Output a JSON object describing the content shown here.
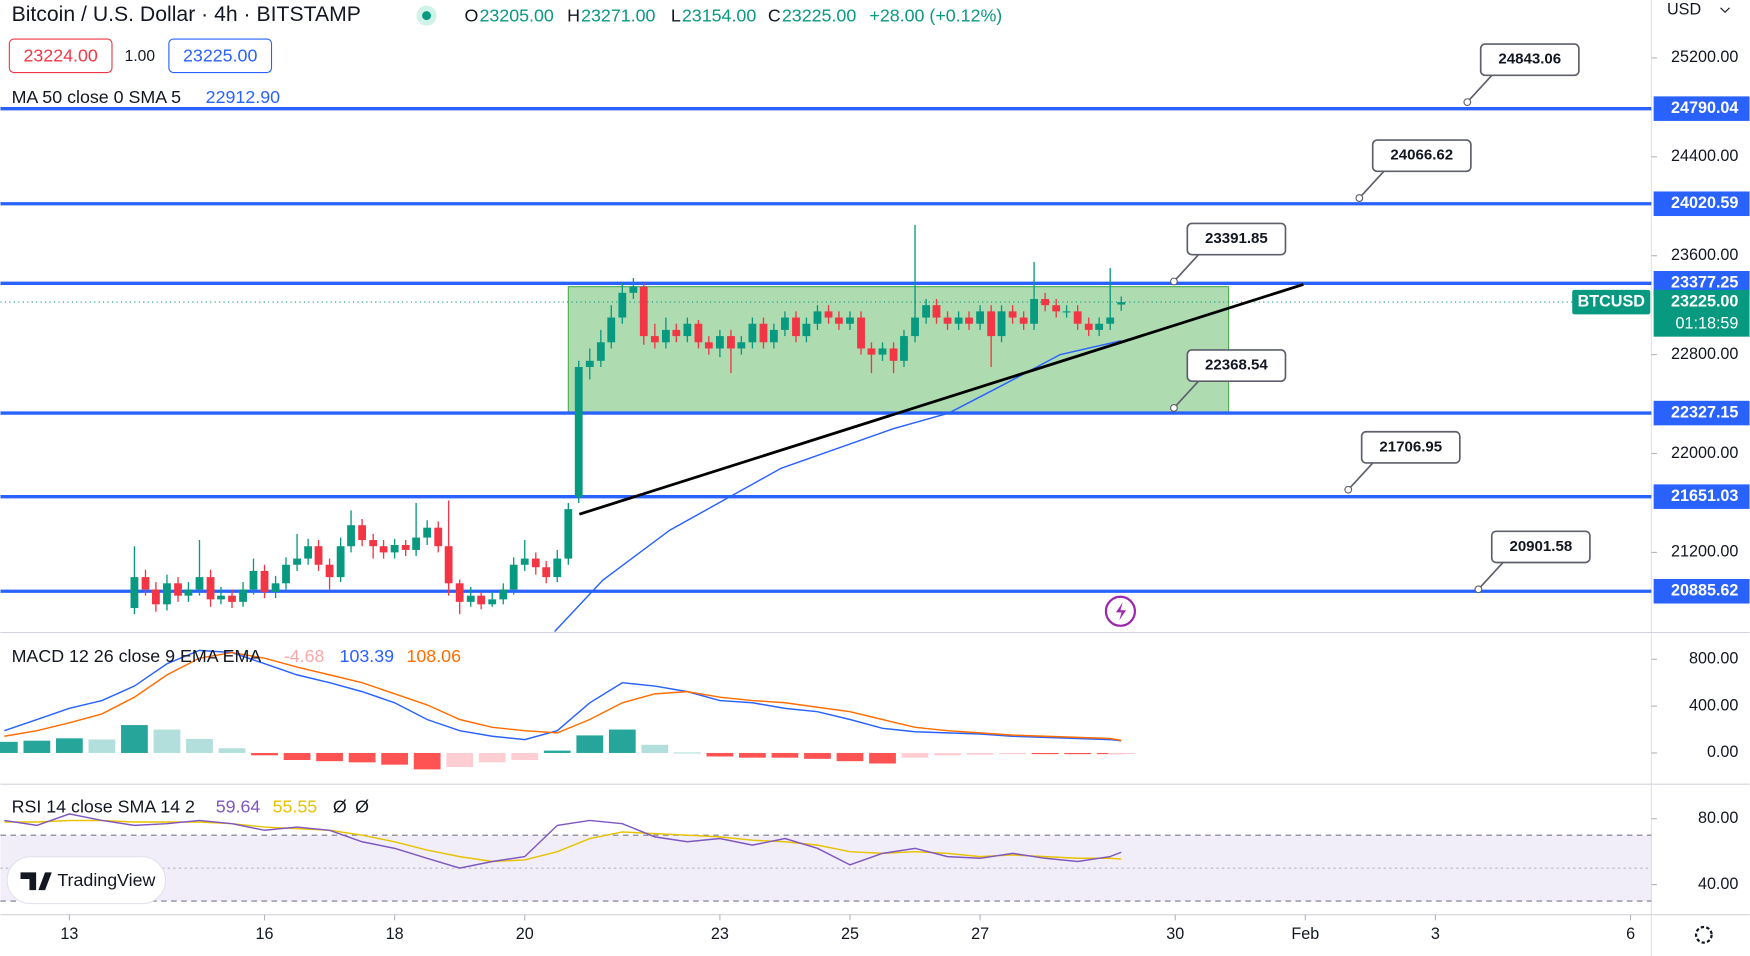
{
  "header": {
    "title": "Bitcoin / U.S. Dollar · 4h · BITSTAMP",
    "ohlc": [
      {
        "prefix": "O",
        "value": 23205,
        "label": "23205.00"
      },
      {
        "prefix": "H",
        "value": 23271,
        "label": "23271.00"
      },
      {
        "prefix": "L",
        "value": 23154,
        "label": "23154.00"
      },
      {
        "prefix": "C",
        "value": 23225,
        "label": "23225.00"
      }
    ],
    "change": "+28.00 (+0.12%)",
    "bid": {
      "value": 23224,
      "label": "23224.00"
    },
    "spread": {
      "value": 1,
      "label": "1.00"
    },
    "ask": {
      "value": 23225,
      "label": "23225.00"
    },
    "currency": "USD",
    "brand": "TradingView"
  },
  "chart_data": [
    {
      "type": "candlestick",
      "x": [
        14,
        14.17,
        14.33,
        14.5,
        14.67,
        14.83,
        15,
        15.17,
        15.33,
        15.5,
        15.67,
        15.83,
        16,
        16.17,
        16.33,
        16.5,
        16.67,
        16.83,
        17,
        17.17,
        17.33,
        17.5,
        17.67,
        17.83,
        18,
        18.17,
        18.33,
        18.5,
        18.67,
        18.83,
        19,
        19.17,
        19.33,
        19.5,
        19.67,
        19.83,
        20,
        20.17,
        20.33,
        20.5,
        20.67,
        20.83,
        21,
        21.17,
        21.33,
        21.5,
        21.67,
        21.83,
        22,
        22.17,
        22.33,
        22.5,
        22.67,
        22.83,
        23,
        23.17,
        23.33,
        23.5,
        23.67,
        23.83,
        24,
        24.17,
        24.33,
        24.5,
        24.67,
        24.83,
        25,
        25.17,
        25.33,
        25.5,
        25.67,
        25.83,
        26,
        26.17,
        26.33,
        26.5,
        26.67,
        26.83,
        27,
        27.17,
        27.33,
        27.5,
        27.67,
        27.83,
        28,
        28.17,
        28.33,
        28.5,
        28.67,
        28.83,
        29,
        29.17
      ],
      "open": [
        20750,
        21000,
        20900,
        20780,
        20950,
        20850,
        20900,
        21000,
        20820,
        20850,
        20800,
        20900,
        21050,
        20880,
        20950,
        21100,
        21150,
        21250,
        21100,
        21000,
        21250,
        21420,
        21300,
        21250,
        21200,
        21260,
        21220,
        21320,
        21400,
        21250,
        20950,
        20800,
        20850,
        20780,
        20820,
        20900,
        21100,
        21150,
        21080,
        21000,
        21150,
        21650,
        22700,
        22750,
        22900,
        23100,
        23300,
        23350,
        22950,
        22900,
        23000,
        22950,
        23050,
        22900,
        22850,
        22950,
        22850,
        22900,
        23050,
        22900,
        23000,
        23100,
        22950,
        23050,
        23150,
        23100,
        23050,
        23100,
        22850,
        22800,
        22850,
        22750,
        22950,
        23100,
        23200,
        23100,
        23050,
        23100,
        23050,
        23150,
        22950,
        23150,
        23100,
        23050,
        23250,
        23200,
        23150,
        23150,
        23050,
        23000,
        23050,
        23205
      ],
      "high": [
        21250,
        21060,
        20960,
        21020,
        21000,
        20960,
        21300,
        21060,
        20920,
        20900,
        20960,
        21150,
        21100,
        21010,
        21160,
        21350,
        21310,
        21300,
        21150,
        21320,
        21540,
        21470,
        21350,
        21300,
        21310,
        21300,
        21600,
        21460,
        21450,
        21620,
        20980,
        20920,
        20880,
        20880,
        20950,
        21160,
        21300,
        21200,
        21130,
        21220,
        21600,
        22750,
        22850,
        23000,
        23200,
        23380,
        23420,
        23380,
        23050,
        23100,
        23050,
        23100,
        23080,
        22950,
        23000,
        23000,
        22950,
        23100,
        23100,
        23050,
        23150,
        23150,
        23100,
        23200,
        23200,
        23150,
        23150,
        23150,
        22900,
        22900,
        22900,
        23000,
        23850,
        23250,
        23250,
        23150,
        23150,
        23150,
        23200,
        23200,
        23200,
        23200,
        23150,
        23550,
        23300,
        23250,
        23200,
        23200,
        23100,
        23100,
        23500,
        23271
      ],
      "low": [
        20700,
        20850,
        20720,
        20730,
        20800,
        20800,
        20850,
        20760,
        20780,
        20750,
        20760,
        20860,
        20830,
        20830,
        20900,
        21050,
        21100,
        21050,
        20900,
        20960,
        21200,
        21250,
        21150,
        21150,
        21150,
        21170,
        21170,
        21260,
        21200,
        20850,
        20700,
        20760,
        20740,
        20760,
        20780,
        20860,
        21050,
        21020,
        20950,
        20960,
        21100,
        21600,
        22600,
        22700,
        22850,
        23050,
        23250,
        22880,
        22850,
        22850,
        22900,
        22900,
        22850,
        22800,
        22780,
        22650,
        22800,
        22850,
        22850,
        22850,
        22950,
        22900,
        22900,
        23000,
        23050,
        23000,
        23000,
        22800,
        22650,
        22750,
        22650,
        22700,
        22900,
        23050,
        23050,
        23000,
        23000,
        23000,
        23000,
        22700,
        22900,
        23050,
        23000,
        23000,
        23150,
        23100,
        23100,
        23000,
        22950,
        22950,
        23000,
        23154
      ],
      "close": [
        21000,
        20900,
        20780,
        20950,
        20850,
        20900,
        21000,
        20820,
        20850,
        20800,
        20900,
        21050,
        20880,
        20950,
        21100,
        21150,
        21250,
        21100,
        21000,
        21250,
        21420,
        21300,
        21250,
        21200,
        21260,
        21220,
        21320,
        21400,
        21250,
        20950,
        20800,
        20850,
        20780,
        20820,
        20900,
        21100,
        21150,
        21080,
        21000,
        21150,
        21550,
        22700,
        22750,
        22900,
        23100,
        23300,
        23350,
        22950,
        22900,
        23000,
        22950,
        23050,
        22900,
        22850,
        22950,
        22850,
        22900,
        23050,
        22900,
        23000,
        23100,
        22950,
        23050,
        23150,
        23100,
        23050,
        23100,
        22850,
        22800,
        22850,
        22750,
        22950,
        23100,
        23200,
        23100,
        23050,
        23100,
        23050,
        23150,
        22950,
        23150,
        23100,
        23050,
        23250,
        23200,
        23150,
        23150,
        23050,
        23000,
        23050,
        23100,
        23225
      ],
      "colors": {
        "up": "#089981",
        "down": "#f23645"
      },
      "xlim": [
        11.94,
        37.32
      ],
      "xticks": [
        13,
        16,
        18,
        20,
        23,
        25,
        27,
        30,
        {
          "value": 32,
          "label": "Feb"
        },
        {
          "value": 34,
          "label": "3"
        },
        {
          "value": 37,
          "label": "6"
        }
      ],
      "ylim": [
        20552,
        25669
      ],
      "yticks": [
        {
          "value": 25200,
          "label": "25200.00"
        },
        {
          "value": 24400,
          "label": "24400.00"
        },
        {
          "value": 23600,
          "label": "23600.00"
        },
        {
          "value": 22800,
          "label": "22800.00"
        },
        {
          "value": 22000,
          "label": "22000.00"
        },
        {
          "value": 21200,
          "label": "21200.00"
        }
      ],
      "grid": false,
      "indicator": {
        "name": "MA 50 close 0 SMA 5",
        "color": "#2962ff",
        "x": [
          20.46,
          21.2,
          22.23,
          23.94,
          25.66,
          26.52,
          27.37,
          28.23,
          29.17
        ],
        "values": [
          20560,
          20975,
          21380,
          21880,
          22200,
          22327,
          22560,
          22800,
          22912.9
        ],
        "legend_value": {
          "value": 22912.9,
          "label": "22912.90"
        }
      },
      "levels": [
        24790.04,
        24020.59,
        23377.25,
        22327.15,
        21651.03,
        20885.62
      ],
      "level_color": "#2962ff",
      "callouts": [
        {
          "x": 34.49,
          "value": 24843.06
        },
        {
          "x": 32.83,
          "value": 24066.62
        },
        {
          "x": 29.98,
          "value": 23391.85
        },
        {
          "x": 29.98,
          "value": 22368.54
        },
        {
          "x": 32.66,
          "value": 21706.95
        },
        {
          "x": 34.66,
          "value": 20901.58
        }
      ],
      "range_box": {
        "x": [
          20.67,
          30.82
        ],
        "y": [
          22327.15,
          23350
        ],
        "color": "#4caf50"
      },
      "trendline": {
        "x": [
          20.84,
          31.97
        ],
        "y": [
          21509,
          23368
        ],
        "color": "#000000"
      },
      "last_price": {
        "symbol": "BTCUSD",
        "value": 23225,
        "label": "23225.00",
        "countdown": "01:18:59",
        "color": "#089981"
      }
    },
    {
      "type": "macd",
      "legend": "MACD 12 26 close 9 EMA EMA",
      "x": [
        12,
        12.5,
        13,
        13.5,
        14,
        14.5,
        15,
        15.5,
        16,
        16.5,
        17,
        17.5,
        18,
        18.5,
        19,
        19.5,
        20,
        20.5,
        21,
        21.5,
        22,
        22.5,
        23,
        23.5,
        24,
        24.5,
        25,
        25.5,
        26,
        26.5,
        27,
        27.5,
        28,
        28.5,
        29,
        29.17
      ],
      "xlim": [
        11.94,
        37.32
      ],
      "ylim": [
        -266.7,
        1028.6
      ],
      "yticks": [
        {
          "value": 800,
          "label": "800.00"
        },
        {
          "value": 400,
          "label": "400.00"
        },
        {
          "value": 0,
          "label": "0.00"
        }
      ],
      "histogram": {
        "colors": [
          "#26a69a",
          "#b2dfdb",
          "#ff5252",
          "#ffcdd2"
        ],
        "values": [
          95,
          105,
          125,
          115,
          238,
          200,
          120,
          40,
          -20,
          -60,
          -70,
          -80,
          -100,
          -140,
          -120,
          -80,
          -60,
          20,
          150,
          200,
          70,
          5,
          -30,
          -40,
          -40,
          -50,
          -70,
          -90,
          -40,
          -20,
          -15,
          -10,
          -10,
          -10,
          -10,
          -4.68
        ]
      },
      "series": [
        {
          "color": "#2962ff",
          "values": [
            190,
            286,
            381,
            448,
            571,
            762,
            876,
            857,
            762,
            667,
            600,
            524,
            429,
            286,
            190,
            143,
            114,
            190,
            429,
            600,
            571,
            524,
            448,
            429,
            381,
            352,
            286,
            210,
            181,
            171,
            162,
            143,
            133,
            124,
            114,
            103.39
          ]
        },
        {
          "color": "#ff6d00",
          "values": [
            143,
            190,
            257,
            333,
            476,
            667,
            810,
            857,
            810,
            733,
            667,
            600,
            505,
            410,
            286,
            219,
            190,
            171,
            286,
            429,
            505,
            524,
            476,
            448,
            429,
            390,
            352,
            286,
            219,
            190,
            171,
            152,
            143,
            133,
            124,
            108.06
          ]
        }
      ]
    },
    {
      "type": "rsi",
      "legend": "RSI 14 close SMA 14 2",
      "extra_legend": [
        "Ø",
        "Ø"
      ],
      "x": [
        12,
        12.5,
        13,
        13.5,
        14,
        14.5,
        15,
        15.5,
        16,
        16.5,
        17,
        17.5,
        18,
        18.5,
        19,
        19.5,
        20,
        20.5,
        21,
        21.5,
        22,
        22.5,
        23,
        23.5,
        24,
        24.5,
        25,
        25.5,
        26,
        26.5,
        27,
        27.5,
        28,
        28.5,
        29,
        29.17
      ],
      "xlim": [
        11.94,
        37.32
      ],
      "ylim": [
        21.7,
        101
      ],
      "yticks": [
        {
          "value": 80,
          "label": "80.00"
        },
        {
          "value": 40,
          "label": "40.00"
        }
      ],
      "band": [
        30,
        70
      ],
      "midline": 50,
      "band_color": "#7e57c2",
      "series": [
        {
          "color": "#7e57c2",
          "values": [
            79,
            76,
            83,
            79,
            76,
            77,
            79,
            77,
            73,
            75,
            73,
            66,
            62,
            56,
            50,
            54,
            57,
            76,
            79,
            77,
            69,
            66,
            68,
            64,
            68,
            62,
            52,
            59,
            62,
            57,
            56,
            59,
            56,
            54,
            57,
            59.64
          ]
        },
        {
          "color": "#e8c200",
          "values": [
            78,
            78,
            79,
            79,
            78,
            78,
            78,
            77,
            75,
            74,
            73,
            70,
            66,
            61,
            57,
            54,
            55,
            60,
            68,
            72,
            71,
            70,
            69,
            67,
            66,
            64,
            60,
            59,
            60,
            59,
            57,
            58,
            57,
            56,
            56,
            55.55
          ]
        }
      ]
    }
  ]
}
